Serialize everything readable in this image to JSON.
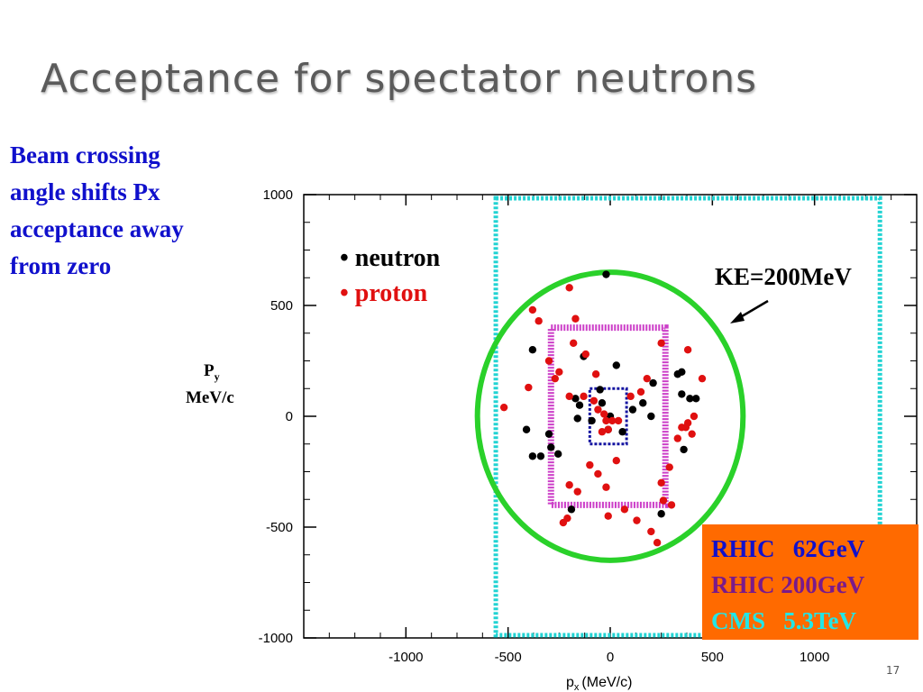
{
  "slide": {
    "title": "Acceptance for spectator neutrons",
    "note_lines": [
      "Beam crossing",
      "angle shifts Px",
      "acceptance away",
      "from zero"
    ],
    "page_number": "17"
  },
  "chart_data": {
    "type": "scatter",
    "xlabel": "p",
    "xlabel_sub": "x",
    "xlabel_unit": "(MeV/c)",
    "ylabel": "P",
    "ylabel_sub": "y",
    "ylabel_unit": "MeV/c",
    "xlim": [
      -1500,
      1500
    ],
    "ylim": [
      -1000,
      1000
    ],
    "xticks": [
      -1000,
      -500,
      0,
      500,
      1000
    ],
    "yticks": [
      -1000,
      -500,
      0,
      500,
      1000
    ],
    "legend": [
      {
        "label": "• neutron",
        "color": "#000000"
      },
      {
        "label": "• proton",
        "color": "#e01010"
      }
    ],
    "series": [
      {
        "name": "neutron",
        "color": "#000000",
        "points": [
          [
            -380,
            300
          ],
          [
            -410,
            -60
          ],
          [
            -380,
            -180
          ],
          [
            -340,
            -180
          ],
          [
            -300,
            -80
          ],
          [
            -290,
            -140
          ],
          [
            -255,
            -170
          ],
          [
            -170,
            80
          ],
          [
            -150,
            50
          ],
          [
            -160,
            -10
          ],
          [
            -90,
            -20
          ],
          [
            -10,
            -60
          ],
          [
            0,
            0
          ],
          [
            30,
            230
          ],
          [
            -20,
            640
          ],
          [
            -190,
            -420
          ],
          [
            -130,
            270
          ],
          [
            -50,
            120
          ],
          [
            -40,
            60
          ],
          [
            60,
            -70
          ],
          [
            110,
            30
          ],
          [
            160,
            60
          ],
          [
            210,
            150
          ],
          [
            200,
            0
          ],
          [
            250,
            -440
          ],
          [
            350,
            100
          ],
          [
            330,
            190
          ],
          [
            350,
            200
          ],
          [
            390,
            80
          ],
          [
            420,
            80
          ],
          [
            360,
            -150
          ]
        ]
      },
      {
        "name": "proton",
        "color": "#e01010",
        "points": [
          [
            -520,
            40
          ],
          [
            -380,
            480
          ],
          [
            -350,
            430
          ],
          [
            -200,
            580
          ],
          [
            -170,
            440
          ],
          [
            -120,
            280
          ],
          [
            -300,
            250
          ],
          [
            -270,
            170
          ],
          [
            -250,
            200
          ],
          [
            -180,
            330
          ],
          [
            -400,
            130
          ],
          [
            -200,
            90
          ],
          [
            -130,
            90
          ],
          [
            -70,
            190
          ],
          [
            -80,
            70
          ],
          [
            -60,
            30
          ],
          [
            -30,
            10
          ],
          [
            -10,
            -60
          ],
          [
            -40,
            -70
          ],
          [
            -20,
            -20
          ],
          [
            10,
            -20
          ],
          [
            40,
            -20
          ],
          [
            -100,
            -220
          ],
          [
            -60,
            -260
          ],
          [
            -20,
            -320
          ],
          [
            30,
            -200
          ],
          [
            -200,
            -310
          ],
          [
            -160,
            -340
          ],
          [
            -230,
            -480
          ],
          [
            -210,
            -460
          ],
          [
            -10,
            -450
          ],
          [
            70,
            -420
          ],
          [
            130,
            -470
          ],
          [
            200,
            -520
          ],
          [
            230,
            -570
          ],
          [
            250,
            -300
          ],
          [
            260,
            -380
          ],
          [
            290,
            -230
          ],
          [
            300,
            -400
          ],
          [
            350,
            -50
          ],
          [
            380,
            -30
          ],
          [
            330,
            -100
          ],
          [
            370,
            -50
          ],
          [
            400,
            -80
          ],
          [
            410,
            0
          ],
          [
            450,
            170
          ],
          [
            380,
            300
          ],
          [
            250,
            330
          ],
          [
            180,
            170
          ],
          [
            150,
            110
          ],
          [
            100,
            90
          ]
        ]
      }
    ],
    "regions": [
      {
        "label": "CMS 5.3TeV",
        "shape": "rect",
        "x": [
          -560,
          1320
        ],
        "y": [
          -1000,
          1000
        ],
        "color": "#22d3d3"
      },
      {
        "label": "RHIC 200GeV",
        "shape": "rect",
        "x": [
          -290,
          270
        ],
        "y": [
          -400,
          400
        ],
        "color": "#cc3ec8"
      },
      {
        "label": "RHIC 62GeV",
        "shape": "rect",
        "x": [
          -100,
          80
        ],
        "y": [
          -125,
          125
        ],
        "color": "#1414a0"
      },
      {
        "label": "KE=200MeV",
        "shape": "circle",
        "center": [
          0,
          0
        ],
        "radius": 650,
        "color": "#2ad12a"
      }
    ],
    "annotations": {
      "ke_label": "KE=200MeV",
      "key": [
        {
          "text": "RHIC   62GeV",
          "color": "#1010cc"
        },
        {
          "text": "RHIC 200GeV",
          "color": "#7a1a8a"
        },
        {
          "text": "CMS   5.3TeV",
          "color": "#22e6e6"
        }
      ],
      "key_background": "#ff6a00"
    }
  }
}
